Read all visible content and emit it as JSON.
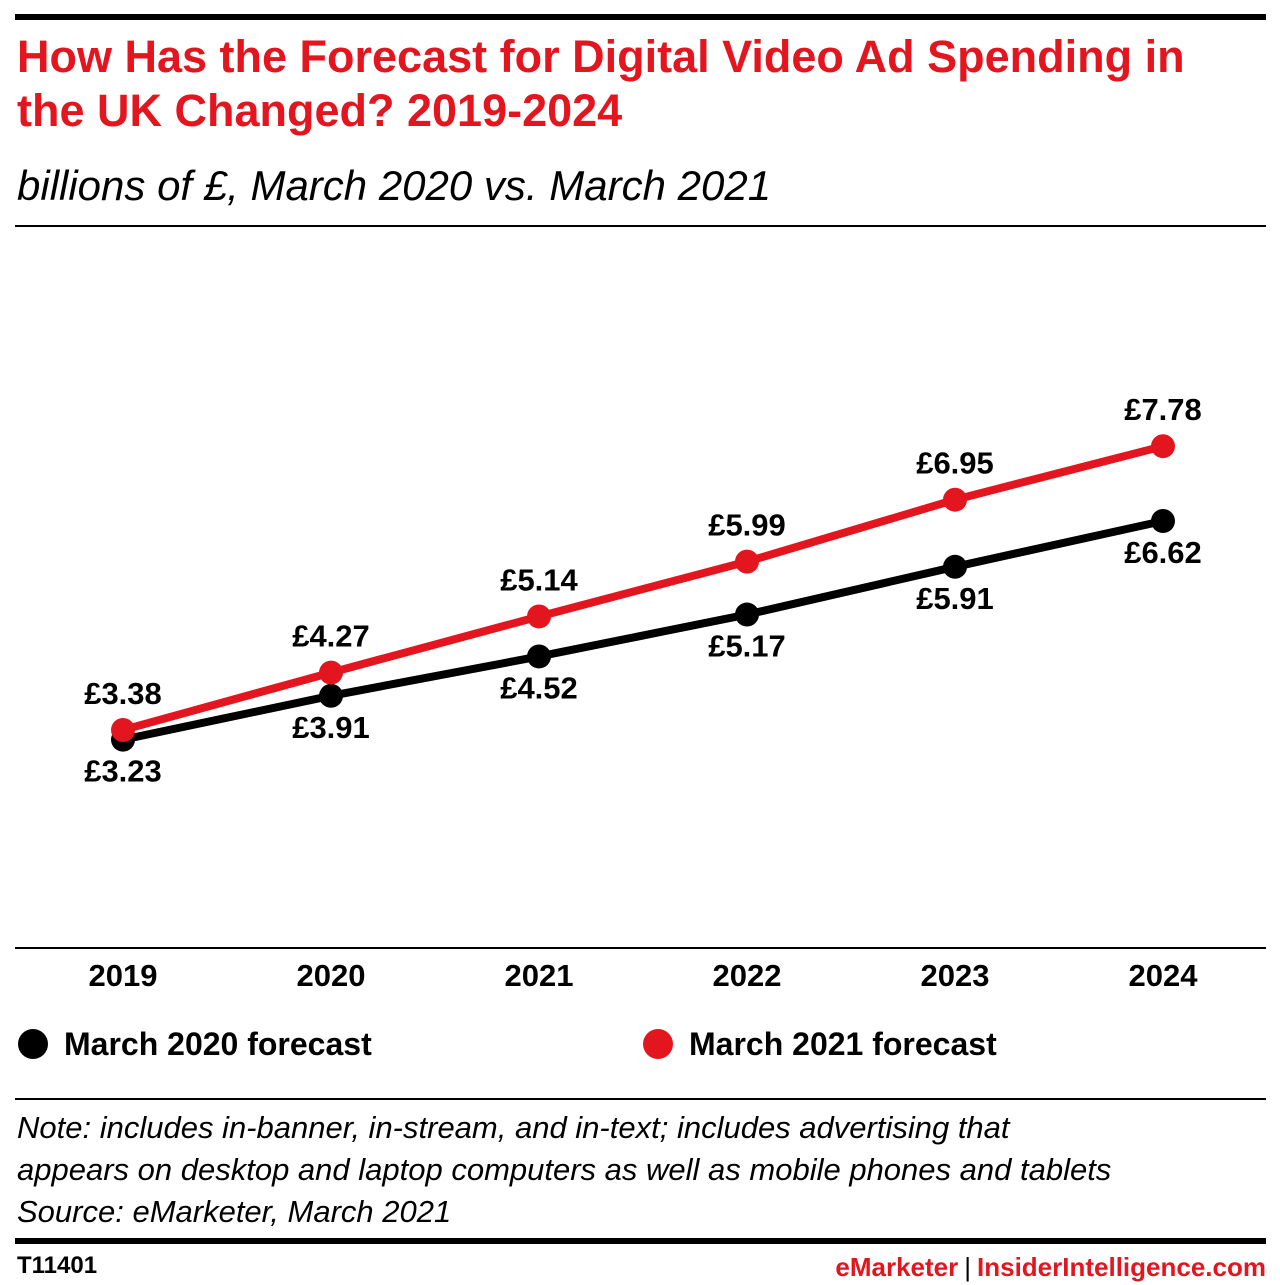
{
  "header": {
    "title": "How Has the Forecast for Digital Video Ad Spending in the UK Changed? 2019-2024",
    "subtitle": "billions of £, March 2020 vs. March 2021"
  },
  "chart_data": {
    "type": "line",
    "title": "How Has the Forecast for Digital Video Ad Spending in the UK Changed? 2019-2024",
    "subtitle": "billions of £, March 2020 vs. March 2021",
    "categories": [
      "2019",
      "2020",
      "2021",
      "2022",
      "2023",
      "2024"
    ],
    "series": [
      {
        "name": "March 2020 forecast",
        "color": "#000000",
        "values": [
          3.23,
          3.91,
          4.52,
          5.17,
          5.91,
          6.62
        ],
        "labels": [
          "£3.23",
          "£3.91",
          "£4.52",
          "£5.17",
          "£5.91",
          "£6.62"
        ]
      },
      {
        "name": "March 2021 forecast",
        "color": "#e3161f",
        "values": [
          3.38,
          4.27,
          5.14,
          5.99,
          6.95,
          7.78
        ],
        "labels": [
          "£3.38",
          "£4.27",
          "£5.14",
          "£5.99",
          "£6.95",
          "£7.78"
        ]
      }
    ],
    "xlabel": "",
    "ylabel": "",
    "ylim": [
      0,
      10.5
    ],
    "grid": false,
    "legend": "bottom"
  },
  "note": {
    "line1": "Note: includes in-banner, in-stream, and in-text; includes advertising that",
    "line2": "appears on desktop and laptop computers as well as mobile phones and tablets",
    "source": "Source: eMarketer, March 2021"
  },
  "footer": {
    "chart_id": "T11401",
    "brand_emarketer": "eMarketer",
    "separator": "|",
    "brand_insider": "InsiderIntelligence.com"
  },
  "colors": {
    "accent": "#e3161f",
    "text": "#000000"
  }
}
